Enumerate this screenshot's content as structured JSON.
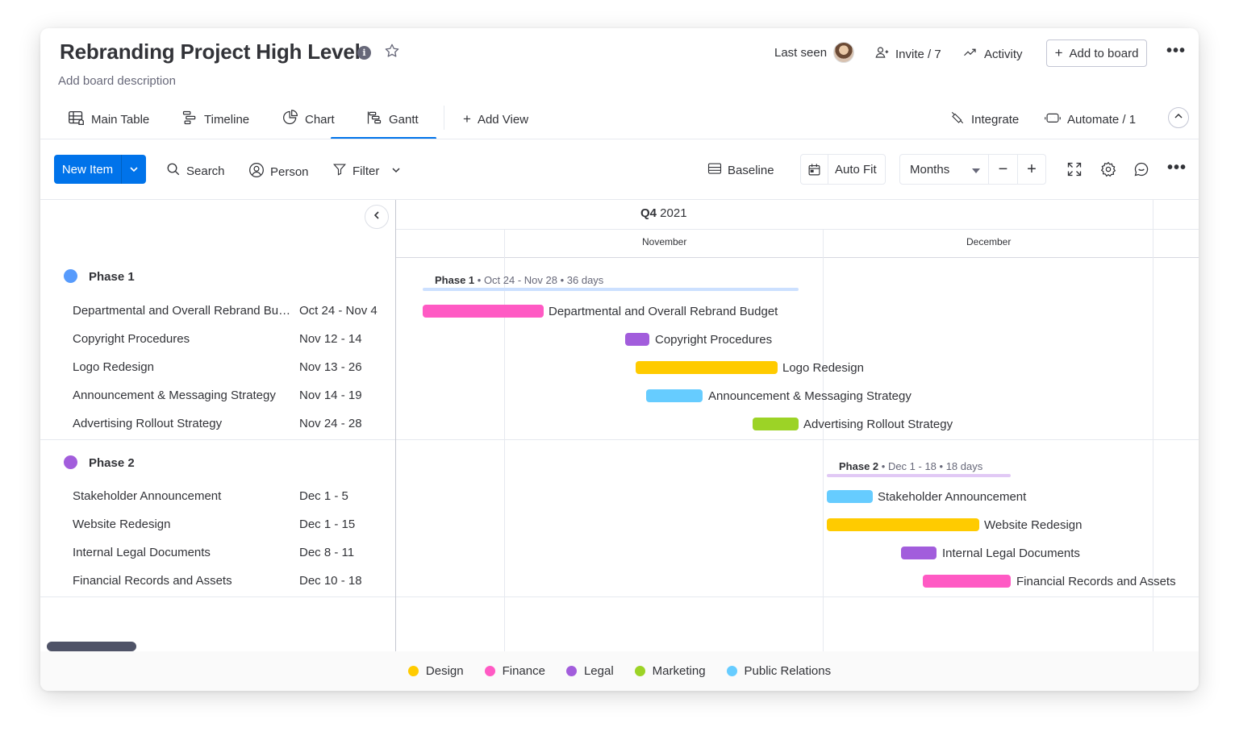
{
  "board": {
    "title": "Rebranding Project High Level",
    "description": "Add board description",
    "last_seen": "Last seen",
    "invite": "Invite / 7",
    "activity": "Activity",
    "add_to_board": "Add to board",
    "info_glyph": "i"
  },
  "views": {
    "tabs": [
      {
        "label": "Main Table",
        "icon": "table-icon"
      },
      {
        "label": "Timeline",
        "icon": "timeline-icon"
      },
      {
        "label": "Chart",
        "icon": "chart-icon"
      },
      {
        "label": "Gantt",
        "icon": "gantt-icon",
        "active": true
      }
    ],
    "add_view": "Add View",
    "integrate": "Integrate",
    "automate": "Automate / 1"
  },
  "toolbar": {
    "new_item": "New Item",
    "search": "Search",
    "person": "Person",
    "filter": "Filter",
    "baseline": "Baseline",
    "auto_fit": "Auto Fit",
    "months": "Months",
    "zoom_out": "−",
    "zoom_in": "+"
  },
  "timeline": {
    "quarter_bold": "Q4",
    "quarter_year": " 2021",
    "months": [
      "November",
      "December"
    ]
  },
  "groups": [
    {
      "name": "Phase 1",
      "color": "#579bfc",
      "summary_dates": "Oct 24 - Nov 28",
      "summary_days": "36 days",
      "items": [
        {
          "name": "Departmental and Overall Rebrand Budget",
          "dates": "Oct 24 - Nov 4",
          "category": "Finance"
        },
        {
          "name": "Copyright Procedures",
          "dates": "Nov 12 - 14",
          "category": "Legal"
        },
        {
          "name": "Logo Redesign",
          "dates": "Nov 13 - 26",
          "category": "Design"
        },
        {
          "name": "Announcement & Messaging Strategy",
          "dates": "Nov 14 - 19",
          "category": "Public Relations"
        },
        {
          "name": "Advertising Rollout Strategy",
          "dates": "Nov 24 - 28",
          "category": "Marketing"
        }
      ]
    },
    {
      "name": "Phase 2",
      "color": "#a25ddc",
      "summary_dates": "Dec 1 - 18",
      "summary_days": "18 days",
      "items": [
        {
          "name": "Stakeholder Announcement",
          "dates": "Dec 1 - 5",
          "category": "Public Relations"
        },
        {
          "name": "Website Redesign",
          "dates": "Dec 1 - 15",
          "category": "Design"
        },
        {
          "name": "Internal Legal Documents",
          "dates": "Dec 8 - 11",
          "category": "Legal"
        },
        {
          "name": "Financial Records and Assets",
          "dates": "Dec 10 - 18",
          "category": "Finance"
        }
      ]
    }
  ],
  "legend": [
    {
      "label": "Design",
      "color": "#ffcb00"
    },
    {
      "label": "Finance",
      "color": "#ff5ac4"
    },
    {
      "label": "Legal",
      "color": "#a25ddc"
    },
    {
      "label": "Marketing",
      "color": "#9cd326"
    },
    {
      "label": "Public Relations",
      "color": "#66ccff"
    }
  ]
}
